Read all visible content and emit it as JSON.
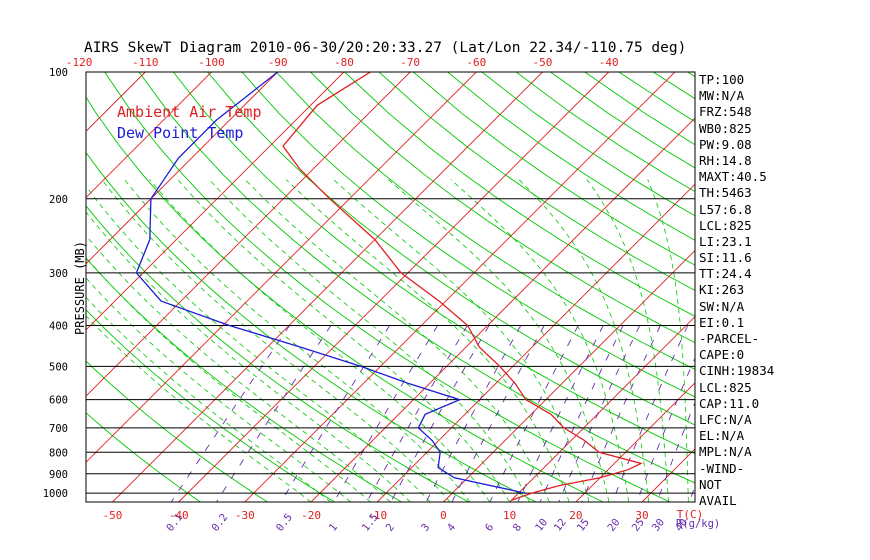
{
  "chart_data": {
    "type": "line",
    "title": "AIRS SkewT Diagram 2010-06-30/20:20:33.27 (Lat/Lon 22.34/-110.75 deg)",
    "ylabel": "PRESSURE (MB)",
    "x_unit_label": "T(C)",
    "mixing_ratio_unit_label": "R(g/kg)",
    "y_scale": "log",
    "ylim": [
      1050,
      100
    ],
    "xlim_bottom_celsius": [
      -54,
      38
    ],
    "pressure_ticks": [
      100,
      200,
      300,
      400,
      500,
      600,
      700,
      800,
      900,
      1000
    ],
    "bottom_temp_ticks": [
      "-50",
      "-40",
      "-30",
      "-20",
      "-10",
      "0",
      "10",
      "20",
      "30"
    ],
    "top_temp_ticks": [
      "-120",
      "-110",
      "-100",
      "-90",
      "-80",
      "-70",
      "-60",
      "-50",
      "-40"
    ],
    "mixing_ratio_labels": [
      "0.1",
      "0.2",
      "0.5",
      "1",
      "1.5",
      "2",
      "3",
      "4",
      "6",
      "8",
      "10",
      "12",
      "15",
      "20",
      "25",
      "30",
      "40"
    ],
    "legend": {
      "position": "top-left",
      "entries": [
        {
          "label": "Ambient Air Temp",
          "color": "#e02020"
        },
        {
          "label": "Dew Point Temp",
          "color": "#1c1cd8"
        }
      ]
    },
    "colors": {
      "isotherm": "#e02020",
      "dry_adiabat": "#00c800",
      "moist_adiabat": "#00c800",
      "mixing_ratio": "#6a2eaa",
      "frame": "#000000"
    },
    "series": [
      {
        "name": "Ambient Air Temp",
        "color": "#e02020",
        "points": [
          [
            100,
            -76
          ],
          [
            120,
            -79
          ],
          [
            150,
            -78
          ],
          [
            170,
            -72
          ],
          [
            200,
            -63
          ],
          [
            250,
            -50
          ],
          [
            300,
            -41
          ],
          [
            350,
            -31
          ],
          [
            400,
            -23
          ],
          [
            450,
            -18
          ],
          [
            500,
            -12
          ],
          [
            550,
            -7
          ],
          [
            600,
            -3
          ],
          [
            650,
            3
          ],
          [
            700,
            7
          ],
          [
            750,
            12
          ],
          [
            800,
            16
          ],
          [
            850,
            24
          ],
          [
            880,
            23
          ],
          [
            920,
            20
          ],
          [
            960,
            15
          ],
          [
            1000,
            12
          ],
          [
            1040,
            10
          ]
        ]
      },
      {
        "name": "Dew Point Temp",
        "color": "#1c1cd8",
        "points": [
          [
            100,
            -90
          ],
          [
            130,
            -92
          ],
          [
            160,
            -92
          ],
          [
            200,
            -90
          ],
          [
            250,
            -84
          ],
          [
            300,
            -81
          ],
          [
            350,
            -73
          ],
          [
            400,
            -59
          ],
          [
            450,
            -45
          ],
          [
            500,
            -33
          ],
          [
            550,
            -23
          ],
          [
            600,
            -13
          ],
          [
            650,
            -16
          ],
          [
            700,
            -15
          ],
          [
            750,
            -11
          ],
          [
            800,
            -8
          ],
          [
            870,
            -6
          ],
          [
            920,
            -2
          ],
          [
            1000,
            11
          ]
        ]
      }
    ]
  },
  "indices": [
    "TP:100",
    "MW:N/A",
    "FRZ:548",
    "WB0:825",
    "PW:9.08",
    "RH:14.8",
    "MAXT:40.5",
    "TH:5463",
    "L57:6.8",
    "LCL:825",
    "LI:23.1",
    "SI:11.6",
    "TT:24.4",
    "KI:263",
    "SW:N/A",
    "EI:0.1",
    "-PARCEL-",
    "CAPE:0",
    "CINH:19834",
    "LCL:825",
    "CAP:11.0",
    "LFC:N/A",
    "EL:N/A",
    "MPL:N/A",
    "-WIND-",
    "NOT",
    "AVAIL"
  ]
}
